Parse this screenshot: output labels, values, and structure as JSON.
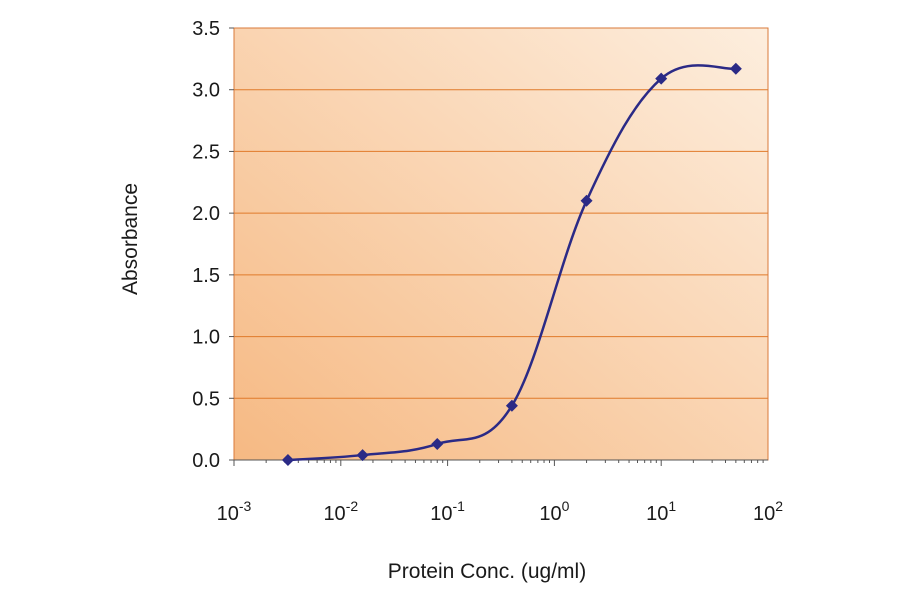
{
  "chart_data": {
    "type": "line",
    "title": "",
    "xlabel": "Protein Conc. (ug/ml)",
    "ylabel": "Absorbance",
    "x_scale": "log",
    "xlim": [
      0.001,
      100
    ],
    "ylim": [
      0,
      3.5
    ],
    "x_ticks": [
      {
        "value": 0.001,
        "base": "10",
        "exp": "-3"
      },
      {
        "value": 0.01,
        "base": "10",
        "exp": "-2"
      },
      {
        "value": 0.1,
        "base": "10",
        "exp": "-1"
      },
      {
        "value": 1,
        "base": "10",
        "exp": "0"
      },
      {
        "value": 10,
        "base": "10",
        "exp": "1"
      },
      {
        "value": 100,
        "base": "10",
        "exp": "2"
      }
    ],
    "y_ticks": [
      "0.0",
      "0.5",
      "1.0",
      "1.5",
      "2.0",
      "2.5",
      "3.0",
      "3.5"
    ],
    "grid": "horizontal",
    "legend": "none",
    "series": [
      {
        "x": [
          0.0032,
          0.016,
          0.08,
          0.4,
          2,
          10,
          50
        ],
        "y": [
          0.0,
          0.04,
          0.13,
          0.44,
          2.1,
          3.09,
          3.17
        ]
      }
    ],
    "colors": {
      "line": "#2b2a86",
      "marker": "#2b2a86",
      "plot_bg_light": "#fdeede",
      "plot_bg_dark": "#f6b983",
      "gridline": "#e07a2a",
      "frame": "#d97a3a"
    }
  }
}
